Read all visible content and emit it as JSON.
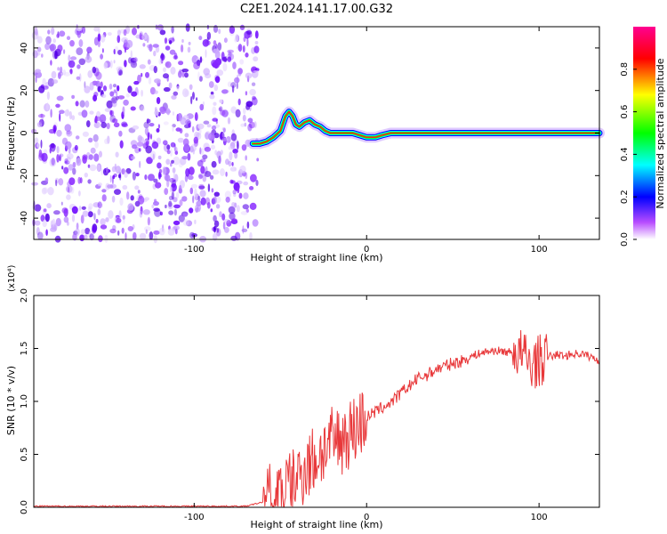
{
  "title": "C2E1.2024.141.17.00.G32",
  "chart_data": [
    {
      "type": "heatmap",
      "xlabel": "Height of straight line (km)",
      "ylabel": "Frequency (Hz)",
      "xlim": [
        -193,
        135
      ],
      "ylim": [
        -50,
        50
      ],
      "xticks": [
        -100,
        0,
        100
      ],
      "yticks": [
        -40,
        -20,
        0,
        20,
        40
      ],
      "colorbar": {
        "label": "Normalized spectral amplitude",
        "range": [
          0,
          1
        ],
        "ticks": [
          "0.0",
          "0.2",
          "0.4",
          "0.6",
          "0.8"
        ],
        "colors": [
          "#ffffff",
          "#b84dff",
          "#0000ff",
          "#00ffff",
          "#00ff00",
          "#ffff00",
          "#ff0000",
          "#ff00a0"
        ]
      },
      "noise_region": {
        "x": [
          -193,
          -63
        ],
        "color": "#6a00ff"
      },
      "signal_trace": [
        [
          -66,
          -5
        ],
        [
          -62,
          -5
        ],
        [
          -58,
          -4
        ],
        [
          -54,
          -2
        ],
        [
          -50,
          1
        ],
        [
          -47,
          8
        ],
        [
          -45,
          10
        ],
        [
          -43,
          8
        ],
        [
          -41,
          4
        ],
        [
          -39,
          3
        ],
        [
          -36,
          5
        ],
        [
          -33,
          6
        ],
        [
          -30,
          4
        ],
        [
          -27,
          3
        ],
        [
          -24,
          1
        ],
        [
          -21,
          0
        ],
        [
          -15,
          0
        ],
        [
          -8,
          0
        ],
        [
          -4,
          -1
        ],
        [
          0,
          -2
        ],
        [
          5,
          -2
        ],
        [
          9,
          -1
        ],
        [
          14,
          0
        ],
        [
          135,
          0
        ]
      ]
    },
    {
      "type": "line",
      "xlabel": "Height of straight line (km)",
      "ylabel": "SNR (10 * v/v)",
      "y_multiplier": "(x10⁴)",
      "xlim": [
        -193,
        135
      ],
      "ylim": [
        0,
        2.0
      ],
      "xticks": [
        -100,
        0,
        100
      ],
      "yticks": [
        "0.0",
        "0.5",
        "1.0",
        "1.5",
        "2.0"
      ],
      "color": "#e8383a",
      "series": [
        {
          "x": [
            -193,
            -150,
            -100,
            -70,
            -60,
            -50,
            -40,
            -35,
            -30,
            -25,
            -20,
            -15,
            -10,
            -5,
            0,
            5,
            10,
            15,
            20,
            25,
            30,
            35,
            40,
            45,
            50,
            55,
            60,
            65,
            70,
            75,
            80,
            85,
            90,
            95,
            100,
            105,
            110,
            115,
            120,
            125,
            130,
            135
          ],
          "y": [
            0.01,
            0.01,
            0.01,
            0.01,
            0.05,
            0.15,
            0.28,
            0.4,
            0.45,
            0.55,
            0.6,
            0.65,
            0.7,
            0.78,
            0.85,
            0.9,
            0.95,
            1.0,
            1.08,
            1.15,
            1.22,
            1.25,
            1.3,
            1.33,
            1.36,
            1.38,
            1.42,
            1.45,
            1.47,
            1.48,
            1.47,
            1.46,
            1.45,
            1.35,
            1.38,
            1.42,
            1.44,
            1.43,
            1.45,
            1.45,
            1.42,
            1.38
          ]
        }
      ]
    }
  ]
}
